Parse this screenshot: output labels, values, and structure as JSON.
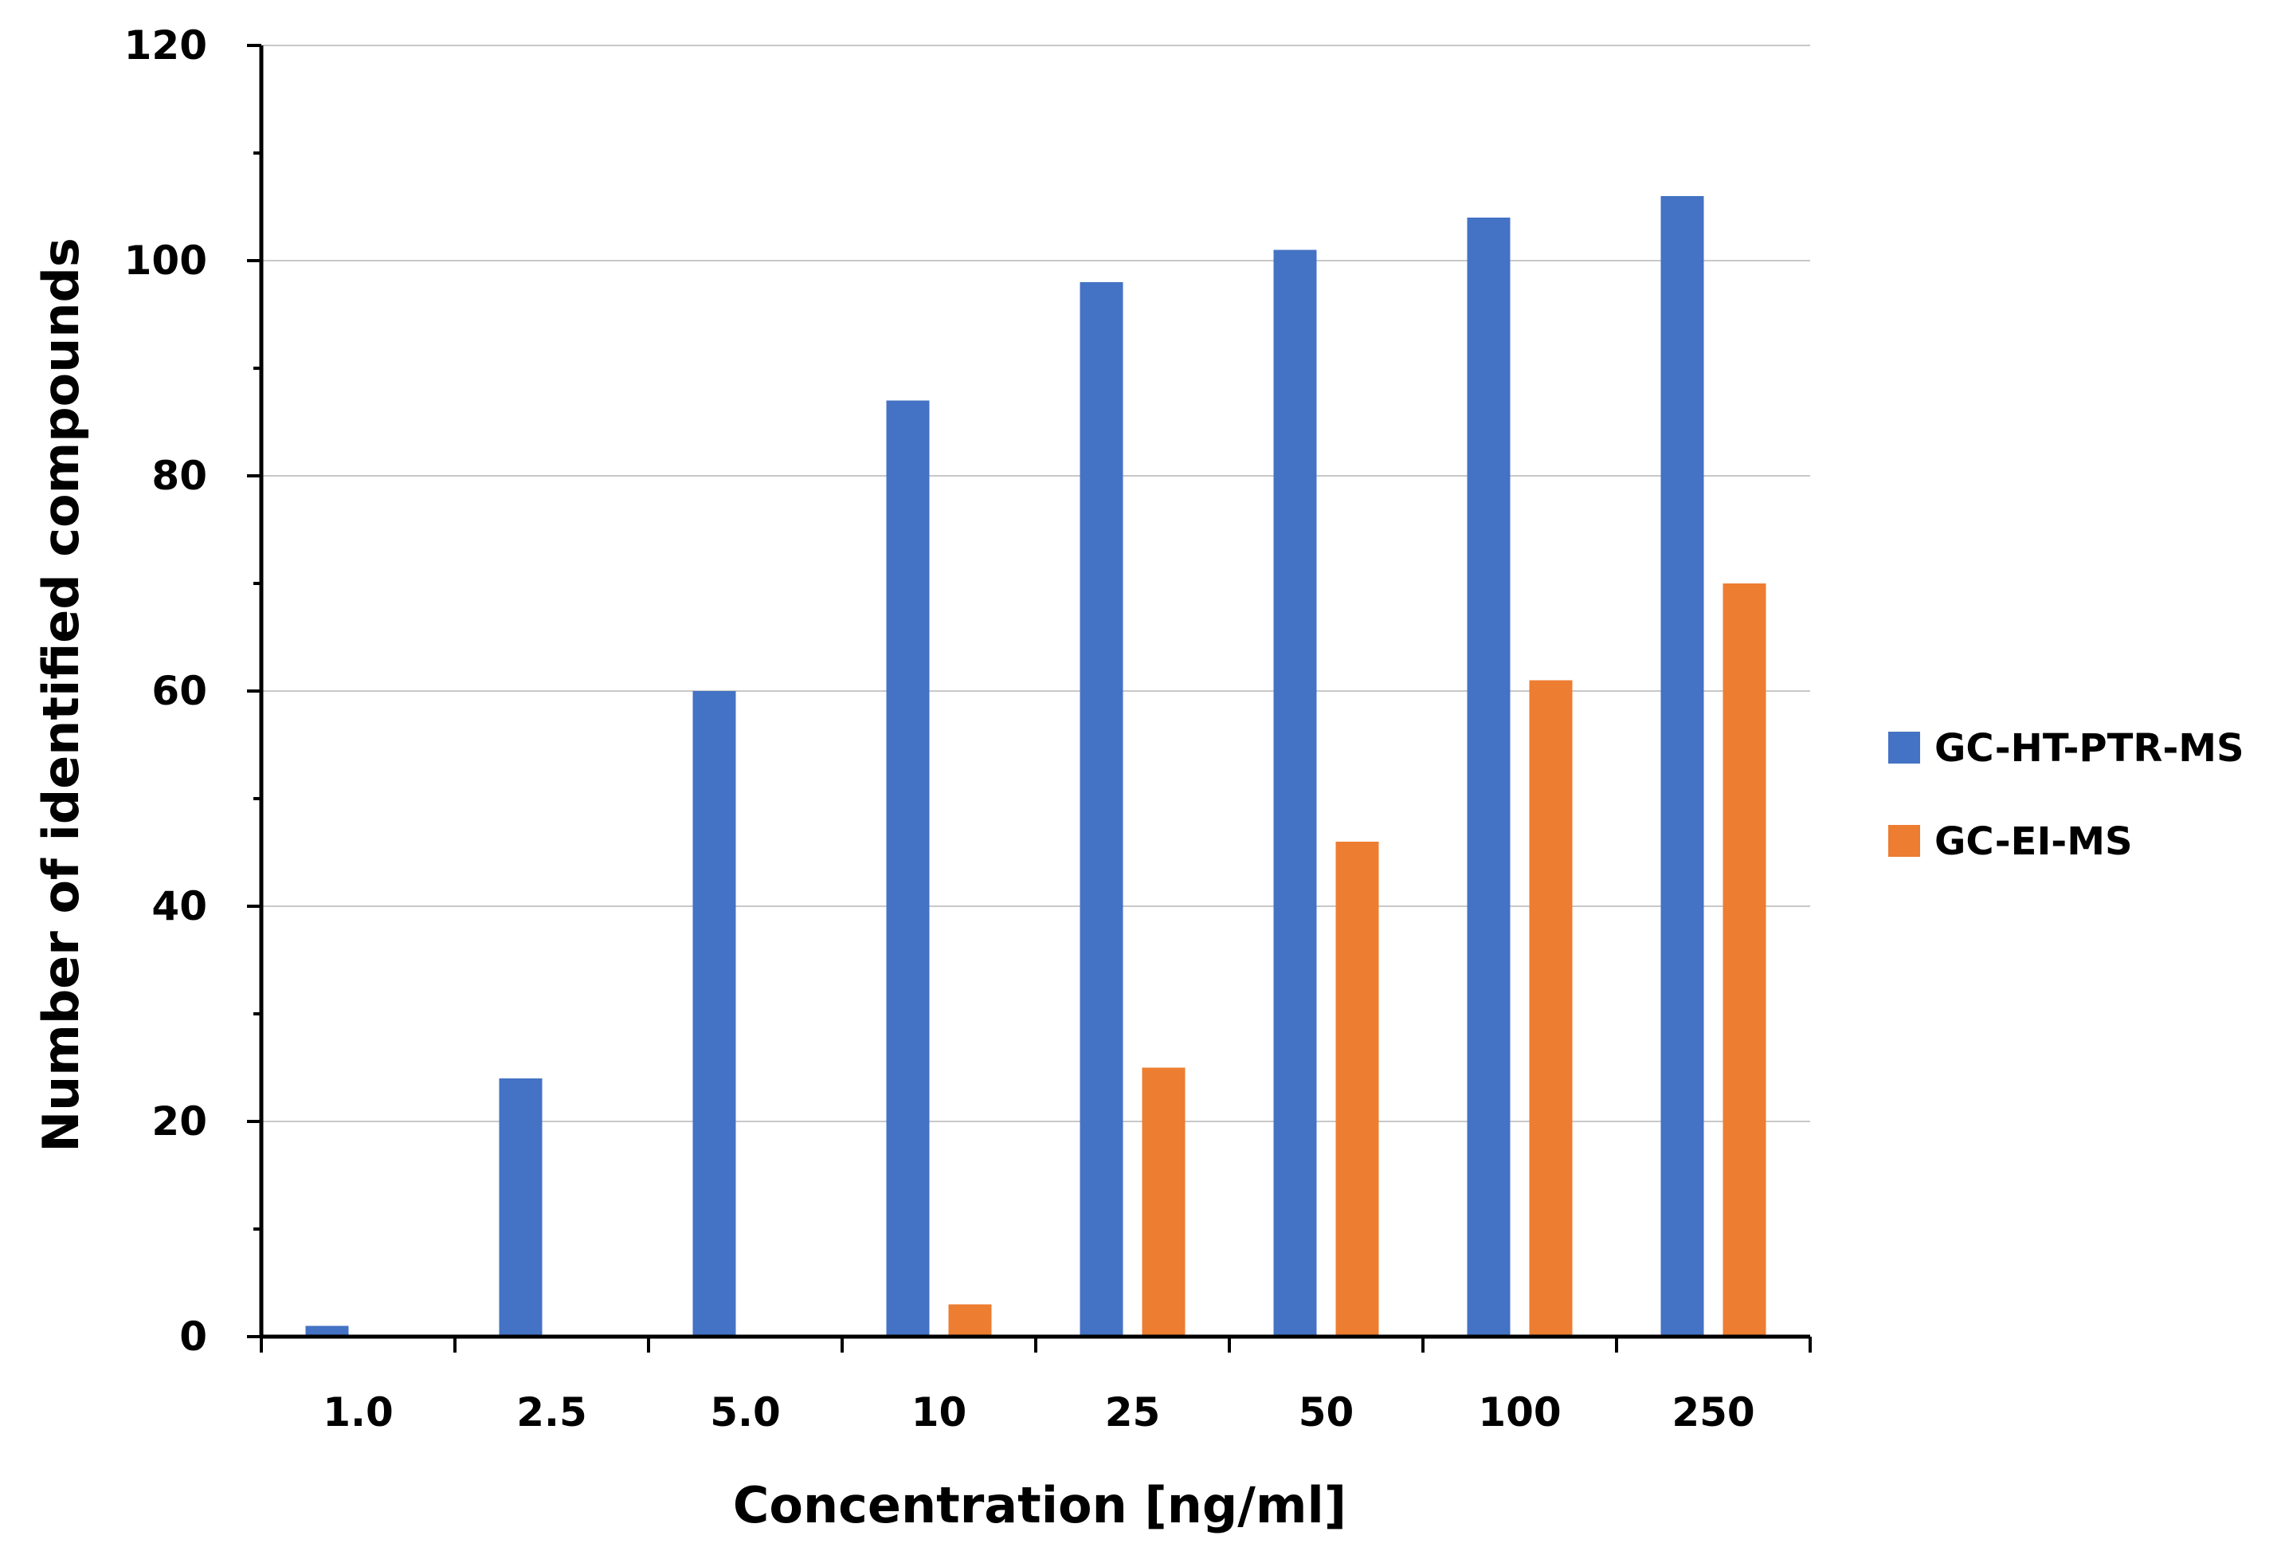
{
  "chart_data": {
    "type": "bar",
    "title": "",
    "xlabel": "Concentration [ng/ml]",
    "ylabel": "Number of identified compounds",
    "ylim": [
      0,
      120
    ],
    "yticks": [
      0,
      20,
      40,
      60,
      80,
      100,
      120
    ],
    "grid": true,
    "legend_position": "right",
    "categories": [
      "1.0",
      "2.5",
      "5.0",
      "10",
      "25",
      "50",
      "100",
      "250"
    ],
    "series": [
      {
        "name": "GC-HT-PTR-MS",
        "color": "#4472C4",
        "values": [
          1,
          24,
          60,
          87,
          98,
          101,
          104,
          106
        ]
      },
      {
        "name": "GC-EI-MS",
        "color": "#ED7D31",
        "values": [
          0,
          0,
          0,
          3,
          25,
          46,
          61,
          70
        ]
      }
    ]
  }
}
